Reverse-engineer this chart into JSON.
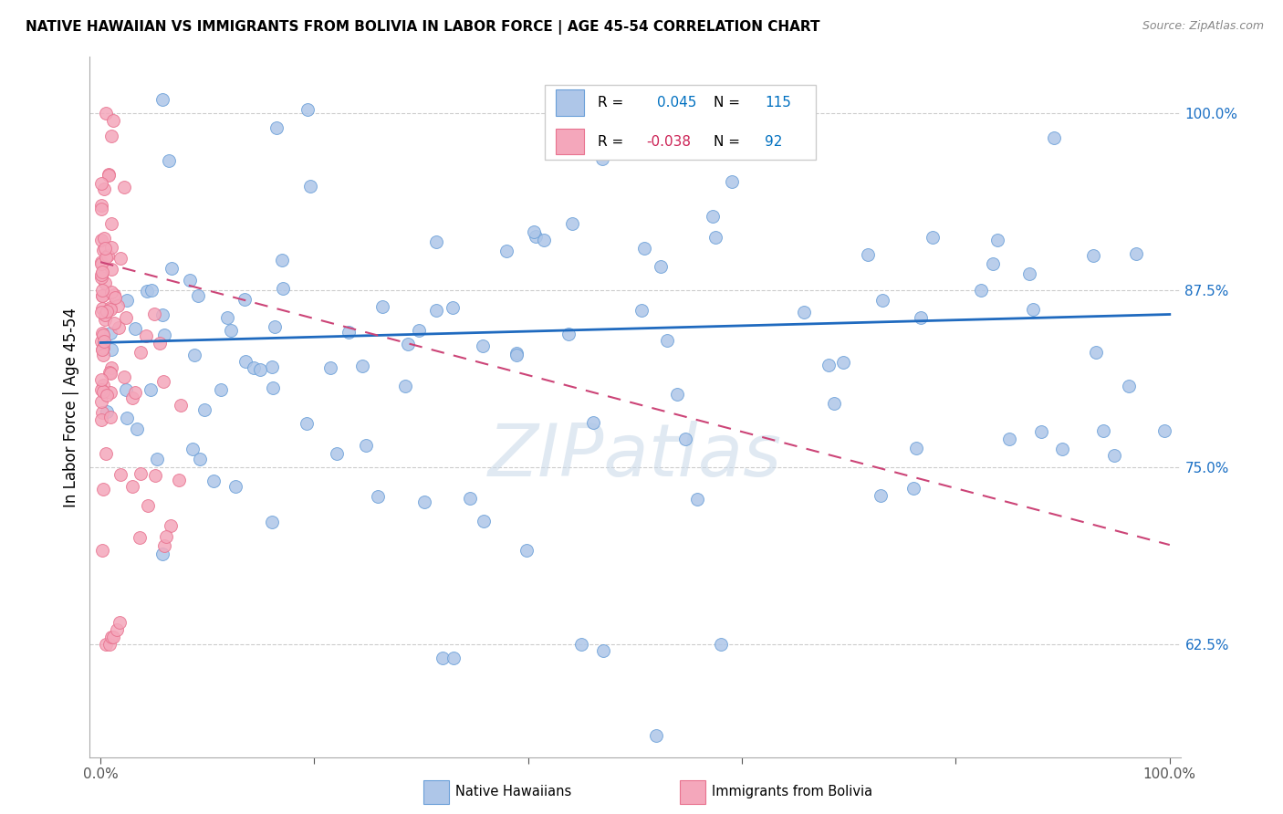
{
  "title": "NATIVE HAWAIIAN VS IMMIGRANTS FROM BOLIVIA IN LABOR FORCE | AGE 45-54 CORRELATION CHART",
  "source": "Source: ZipAtlas.com",
  "ylabel": "In Labor Force | Age 45-54",
  "yticks": [
    0.625,
    0.75,
    0.875,
    1.0
  ],
  "ytick_labels": [
    "62.5%",
    "75.0%",
    "87.5%",
    "100.0%"
  ],
  "xlim": [
    -0.01,
    1.01
  ],
  "ylim": [
    0.545,
    1.04
  ],
  "blue_R": 0.045,
  "blue_N": 115,
  "pink_R": -0.038,
  "pink_N": 92,
  "blue_color": "#aec6e8",
  "pink_color": "#f4a7bb",
  "blue_edge": "#6a9fd8",
  "pink_edge": "#e8728f",
  "blue_line_color": "#1f6abf",
  "pink_line_color": "#cc4477",
  "watermark": "ZIPatlas",
  "blue_line_x": [
    0.0,
    1.0
  ],
  "blue_line_y": [
    0.838,
    0.858
  ],
  "pink_line_x": [
    0.0,
    1.0
  ],
  "pink_line_y": [
    0.895,
    0.695
  ],
  "legend_blue_label": "R =   0.045   N =  115",
  "legend_pink_label": "R = -0.038   N =   92"
}
